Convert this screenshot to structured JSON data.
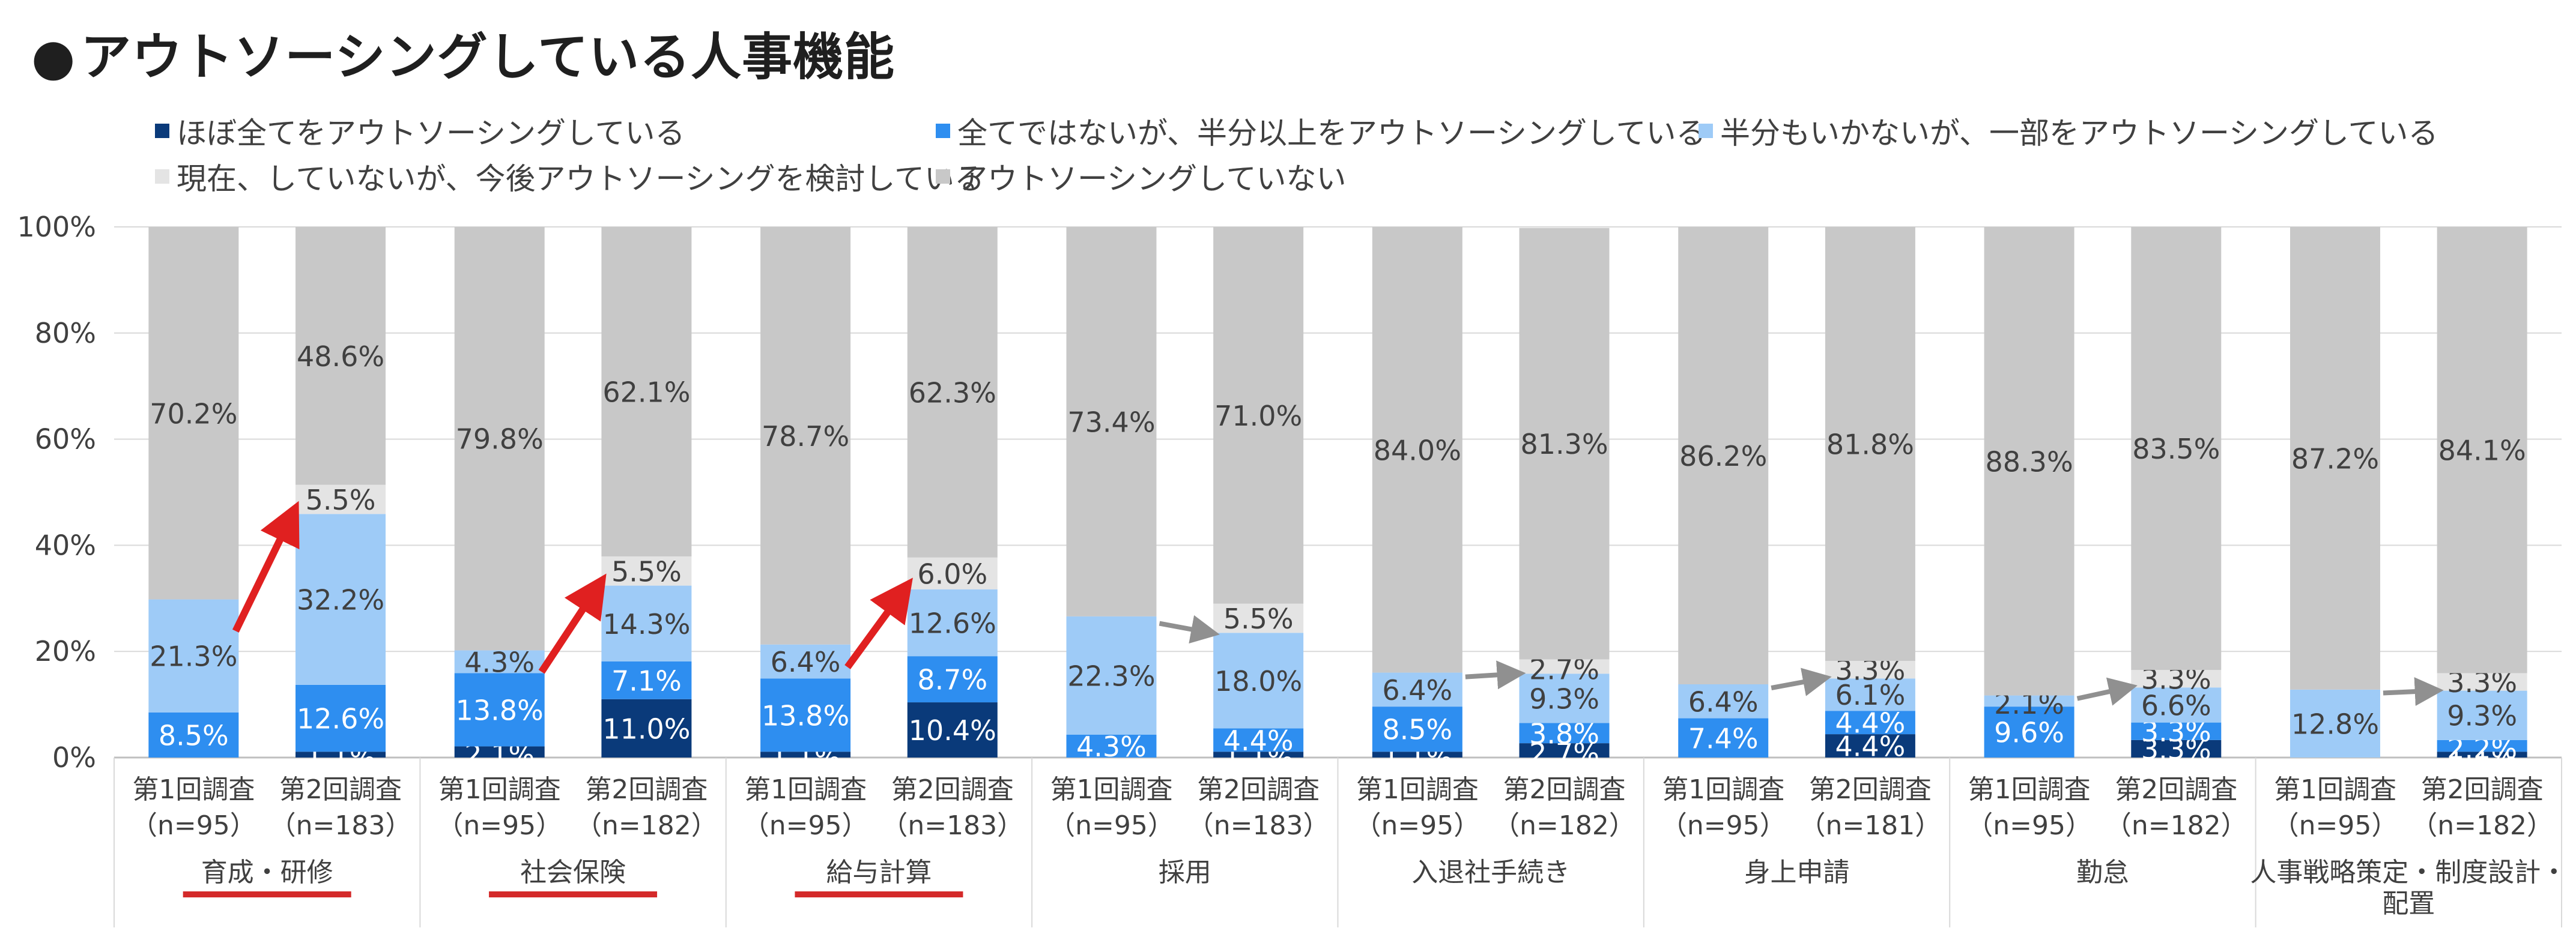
{
  "title": "アウトソーシングしている人事機能",
  "title_marker": "●",
  "colors": {
    "all": "#0a3a7a",
    "half_or_more": "#2e8ef0",
    "less_than_half": "#9ecbf7",
    "considering": "#e4e4e4",
    "not_outsourcing": "#c8c8c8",
    "growth_arrow": "#e02020",
    "other_arrow": "#909090",
    "highlight_underline": "#d42a2a"
  },
  "chart_data": {
    "type": "bar",
    "stacked": true,
    "title": "アウトソーシングしている人事機能",
    "ylim": [
      0,
      100
    ],
    "y_ticks": [
      "0%",
      "20%",
      "40%",
      "60%",
      "80%",
      "100%"
    ],
    "grid": true,
    "legend_position": "top",
    "series": [
      {
        "name": "ほぼ全てをアウトソーシングしている",
        "color_key": "all",
        "values": [
          0,
          1.1,
          2.1,
          11.0,
          1.1,
          10.4,
          0,
          1.1,
          1.1,
          2.7,
          0,
          4.4,
          0,
          3.3,
          0,
          1.1
        ],
        "labels": [
          "",
          "1.1%",
          "2.1%",
          "11.0%",
          "1.1%",
          "10.4%",
          "",
          "1.1%",
          "1.1%",
          "2.7%",
          "",
          "4.4%",
          "",
          "3.3%",
          "",
          "1.1%"
        ]
      },
      {
        "name": "全てではないが、半分以上をアウトソーシングしている",
        "color_key": "half_or_more",
        "values": [
          8.5,
          12.6,
          13.8,
          7.1,
          13.8,
          8.7,
          4.3,
          4.4,
          8.5,
          3.8,
          7.4,
          4.4,
          9.6,
          3.3,
          0,
          2.2
        ],
        "labels": [
          "8.5%",
          "12.6%",
          "13.8%",
          "7.1%",
          "13.8%",
          "8.7%",
          "4.3%",
          "4.4%",
          "8.5%",
          "3.8%",
          "7.4%",
          "4.4%",
          "9.6%",
          "3.3%",
          "",
          "2.2%"
        ]
      },
      {
        "name": "半分もいかないが、一部をアウトソーシングしている",
        "color_key": "less_than_half",
        "values": [
          21.3,
          32.2,
          4.3,
          14.3,
          6.4,
          12.6,
          22.3,
          18.0,
          6.4,
          9.3,
          6.4,
          6.1,
          2.1,
          6.6,
          12.8,
          9.3
        ],
        "labels": [
          "21.3%",
          "32.2%",
          "4.3%",
          "14.3%",
          "6.4%",
          "12.6%",
          "22.3%",
          "18.0%",
          "6.4%",
          "9.3%",
          "6.4%",
          "6.1%",
          "2.1%",
          "6.6%",
          "12.8%",
          "9.3%"
        ]
      },
      {
        "name": "現在、していないが、今後アウトソーシングを検討している",
        "color_key": "considering",
        "values": [
          0,
          5.5,
          0,
          5.5,
          0,
          6.0,
          0,
          5.5,
          0,
          2.7,
          0,
          3.3,
          0,
          3.3,
          0,
          3.3
        ],
        "labels": [
          "",
          "5.5%",
          "",
          "5.5%",
          "",
          "6.0%",
          "",
          "5.5%",
          "",
          "2.7%",
          "",
          "3.3%",
          "",
          "3.3%",
          "",
          "3.3%"
        ]
      },
      {
        "name": "アウトソーシングしていない",
        "color_key": "not_outsourcing",
        "values": [
          70.2,
          48.6,
          79.8,
          62.1,
          78.7,
          62.3,
          73.4,
          71.0,
          84.0,
          81.3,
          86.2,
          81.8,
          88.3,
          83.5,
          87.2,
          84.1
        ],
        "labels": [
          "70.2%",
          "48.6%",
          "79.8%",
          "62.1%",
          "78.7%",
          "62.3%",
          "73.4%",
          "71.0%",
          "84.0%",
          "81.3%",
          "86.2%",
          "81.8%",
          "88.3%",
          "83.5%",
          "87.2%",
          "84.1%"
        ]
      }
    ],
    "bars": [
      {
        "line1": "第1回調査",
        "line2": "（n=95）"
      },
      {
        "line1": "第2回調査",
        "line2": "（n=183）"
      },
      {
        "line1": "第1回調査",
        "line2": "（n=95）"
      },
      {
        "line1": "第2回調査",
        "line2": "（n=182）"
      },
      {
        "line1": "第1回調査",
        "line2": "（n=95）"
      },
      {
        "line1": "第2回調査",
        "line2": "（n=183）"
      },
      {
        "line1": "第1回調査",
        "line2": "（n=95）"
      },
      {
        "line1": "第2回調査",
        "line2": "（n=183）"
      },
      {
        "line1": "第1回調査",
        "line2": "（n=95）"
      },
      {
        "line1": "第2回調査",
        "line2": "（n=182）"
      },
      {
        "line1": "第1回調査",
        "line2": "（n=95）"
      },
      {
        "line1": "第2回調査",
        "line2": "（n=181）"
      },
      {
        "line1": "第1回調査",
        "line2": "（n=95）"
      },
      {
        "line1": "第2回調査",
        "line2": "（n=182）"
      },
      {
        "line1": "第1回調査",
        "line2": "（n=95）"
      },
      {
        "line1": "第2回調査",
        "line2": "（n=182）"
      }
    ],
    "groups": [
      {
        "name": "育成・研修",
        "highlighted": true,
        "arrow": "growth"
      },
      {
        "name": "社会保険",
        "highlighted": true,
        "arrow": "growth"
      },
      {
        "name": "給与計算",
        "highlighted": true,
        "arrow": "growth"
      },
      {
        "name": "採用",
        "highlighted": false,
        "arrow": "other"
      },
      {
        "name": "入退社手続き",
        "highlighted": false,
        "arrow": "other"
      },
      {
        "name": "身上申請",
        "highlighted": false,
        "arrow": "other"
      },
      {
        "name": "勤怠",
        "highlighted": false,
        "arrow": "other"
      },
      {
        "name": "人事戦略策定・制度設計・\n配置",
        "highlighted": false,
        "arrow": "other"
      }
    ]
  }
}
